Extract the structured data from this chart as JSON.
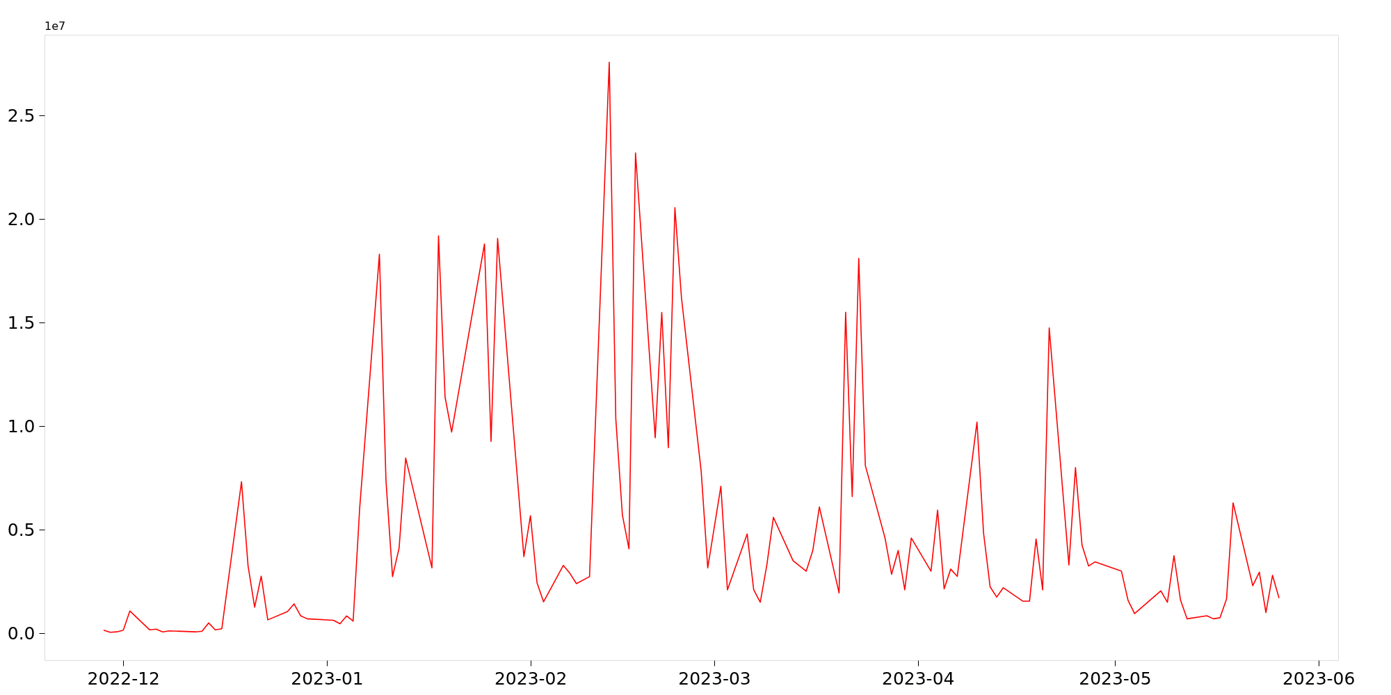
{
  "chart_data": {
    "type": "line",
    "x": [
      "2022-11-28",
      "2022-11-29",
      "2022-11-30",
      "2022-12-01",
      "2022-12-02",
      "2022-12-05",
      "2022-12-06",
      "2022-12-07",
      "2022-12-08",
      "2022-12-12",
      "2022-12-13",
      "2022-12-14",
      "2022-12-15",
      "2022-12-16",
      "2022-12-19",
      "2022-12-20",
      "2022-12-21",
      "2022-12-22",
      "2022-12-23",
      "2022-12-26",
      "2022-12-27",
      "2022-12-28",
      "2022-12-29",
      "2023-01-02",
      "2023-01-03",
      "2023-01-04",
      "2023-01-05",
      "2023-01-06",
      "2023-01-09",
      "2023-01-10",
      "2023-01-11",
      "2023-01-12",
      "2023-01-13",
      "2023-01-17",
      "2023-01-18",
      "2023-01-19",
      "2023-01-20",
      "2023-01-25",
      "2023-01-26",
      "2023-01-27",
      "2023-01-31",
      "2023-02-01",
      "2023-02-02",
      "2023-02-03",
      "2023-02-06",
      "2023-02-07",
      "2023-02-08",
      "2023-02-10",
      "2023-02-13",
      "2023-02-14",
      "2023-02-15",
      "2023-02-16",
      "2023-02-17",
      "2023-02-20",
      "2023-02-21",
      "2023-02-22",
      "2023-02-23",
      "2023-02-24",
      "2023-02-27",
      "2023-02-28",
      "2023-03-02",
      "2023-03-03",
      "2023-03-06",
      "2023-03-07",
      "2023-03-08",
      "2023-03-09",
      "2023-03-10",
      "2023-03-13",
      "2023-03-15",
      "2023-03-16",
      "2023-03-17",
      "2023-03-20",
      "2023-03-21",
      "2023-03-22",
      "2023-03-23",
      "2023-03-24",
      "2023-03-27",
      "2023-03-28",
      "2023-03-29",
      "2023-03-30",
      "2023-03-31",
      "2023-04-03",
      "2023-04-04",
      "2023-04-05",
      "2023-04-06",
      "2023-04-07",
      "2023-04-10",
      "2023-04-11",
      "2023-04-12",
      "2023-04-13",
      "2023-04-14",
      "2023-04-17",
      "2023-04-18",
      "2023-04-19",
      "2023-04-20",
      "2023-04-21",
      "2023-04-24",
      "2023-04-25",
      "2023-04-26",
      "2023-04-27",
      "2023-04-28",
      "2023-05-02",
      "2023-05-03",
      "2023-05-04",
      "2023-05-08",
      "2023-05-09",
      "2023-05-10",
      "2023-05-11",
      "2023-05-12",
      "2023-05-15",
      "2023-05-16",
      "2023-05-17",
      "2023-05-18",
      "2023-05-19",
      "2023-05-22",
      "2023-05-23",
      "2023-05-24",
      "2023-05-25",
      "2023-05-26"
    ],
    "series": [
      {
        "color": "#ff0000",
        "values": [
          0.015,
          0.005,
          0.007,
          0.015,
          0.108,
          0.017,
          0.02,
          0.007,
          0.012,
          0.007,
          0.01,
          0.05,
          0.017,
          0.022,
          0.732,
          0.325,
          0.126,
          0.276,
          0.065,
          0.105,
          0.142,
          0.085,
          0.07,
          0.063,
          0.046,
          0.084,
          0.059,
          0.606,
          1.83,
          0.737,
          0.274,
          0.412,
          0.846,
          0.316,
          1.919,
          1.14,
          0.972,
          1.88,
          0.926,
          1.907,
          0.37,
          0.568,
          0.244,
          0.152,
          0.328,
          0.29,
          0.24,
          0.274,
          2.757,
          1.035,
          0.572,
          0.408,
          2.319,
          0.944,
          1.549,
          0.896,
          2.055,
          1.62,
          0.783,
          0.316,
          0.71,
          0.21,
          0.48,
          0.21,
          0.15,
          0.33,
          0.56,
          0.35,
          0.3,
          0.4,
          0.61,
          0.195,
          1.55,
          0.66,
          1.81,
          0.81,
          0.46,
          0.285,
          0.4,
          0.21,
          0.46,
          0.3,
          0.595,
          0.215,
          0.31,
          0.275,
          1.02,
          0.485,
          0.225,
          0.175,
          0.22,
          0.155,
          0.155,
          0.455,
          0.21,
          1.475,
          0.33,
          0.8,
          0.425,
          0.325,
          0.345,
          0.3,
          0.16,
          0.095,
          0.205,
          0.15,
          0.375,
          0.16,
          0.07,
          0.085,
          0.07,
          0.075,
          0.165,
          0.63,
          0.23,
          0.295,
          0.1,
          0.28,
          0.17
        ]
      }
    ],
    "xlim": [
      "2022-11-19",
      "2023-06-04"
    ],
    "xticks": [
      "2022-12",
      "2023-01",
      "2023-02",
      "2023-03",
      "2023-04",
      "2023-05",
      "2023-06"
    ],
    "ylim": [
      -0.13,
      2.89
    ],
    "yticks": [
      {
        "value": 0,
        "label": "0.0"
      },
      0.5,
      {
        "value": 1,
        "label": "1.0"
      },
      1.5,
      {
        "value": 2,
        "label": "2.0"
      },
      2.5
    ],
    "annotations": [
      "1e7"
    ],
    "grid": false,
    "line_style": "solid"
  }
}
